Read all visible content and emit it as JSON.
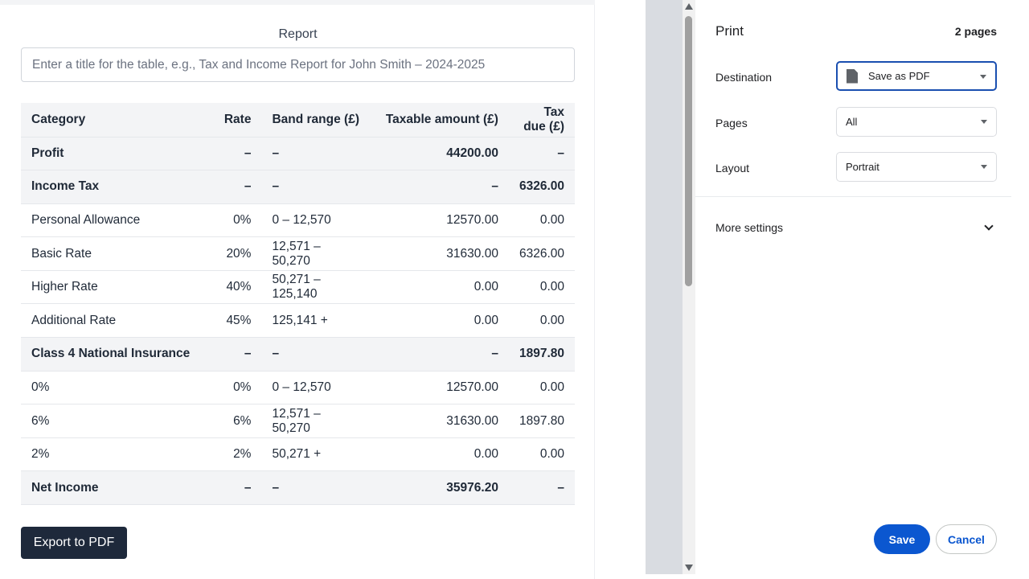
{
  "report": {
    "label": "Report",
    "title_placeholder": "Enter a title for the table, e.g., Tax and Income Report for John Smith – 2024-2025",
    "title_value": "",
    "columns": [
      "Category",
      "Rate",
      "Band range (£)",
      "Taxable amount (£)",
      "Tax due (£)"
    ],
    "rows": [
      {
        "category": "Profit",
        "rate": "–",
        "band": "–",
        "taxable": "44200.00",
        "due": "–",
        "bold": true
      },
      {
        "category": "Income Tax",
        "rate": "–",
        "band": "–",
        "taxable": "–",
        "due": "6326.00",
        "bold": true
      },
      {
        "category": "Personal Allowance",
        "rate": "0%",
        "band": "0 – 12,570",
        "taxable": "12570.00",
        "due": "0.00",
        "bold": false
      },
      {
        "category": "Basic Rate",
        "rate": "20%",
        "band": "12,571 – 50,270",
        "taxable": "31630.00",
        "due": "6326.00",
        "bold": false
      },
      {
        "category": "Higher Rate",
        "rate": "40%",
        "band": "50,271 – 125,140",
        "taxable": "0.00",
        "due": "0.00",
        "bold": false
      },
      {
        "category": "Additional Rate",
        "rate": "45%",
        "band": "125,141 +",
        "taxable": "0.00",
        "due": "0.00",
        "bold": false
      },
      {
        "category": "Class 4 National Insurance",
        "rate": "–",
        "band": "–",
        "taxable": "–",
        "due": "1897.80",
        "bold": true
      },
      {
        "category": "0%",
        "rate": "0%",
        "band": "0 – 12,570",
        "taxable": "12570.00",
        "due": "0.00",
        "bold": false
      },
      {
        "category": "6%",
        "rate": "6%",
        "band": "12,571 – 50,270",
        "taxable": "31630.00",
        "due": "1897.80",
        "bold": false
      },
      {
        "category": "2%",
        "rate": "2%",
        "band": "50,271 +",
        "taxable": "0.00",
        "due": "0.00",
        "bold": false
      },
      {
        "category": "Net Income",
        "rate": "–",
        "band": "–",
        "taxable": "35976.20",
        "due": "–",
        "bold": true
      }
    ],
    "export_label": "Export to PDF"
  },
  "print_dialog": {
    "title": "Print",
    "page_count": "2 pages",
    "destination_label": "Destination",
    "destination_value": "Save as PDF",
    "pages_label": "Pages",
    "pages_value": "All",
    "layout_label": "Layout",
    "layout_value": "Portrait",
    "more_settings_label": "More settings",
    "save_label": "Save",
    "cancel_label": "Cancel"
  },
  "colors": {
    "primary_blue": "#0b57d0",
    "export_button": "#1e293b",
    "header_row_bg": "#f3f4f6"
  },
  "icons": [
    "pdf-file-icon",
    "chevron-down-icon",
    "dropdown-arrow-icon",
    "scroll-up-arrow-icon",
    "scroll-down-arrow-icon"
  ]
}
